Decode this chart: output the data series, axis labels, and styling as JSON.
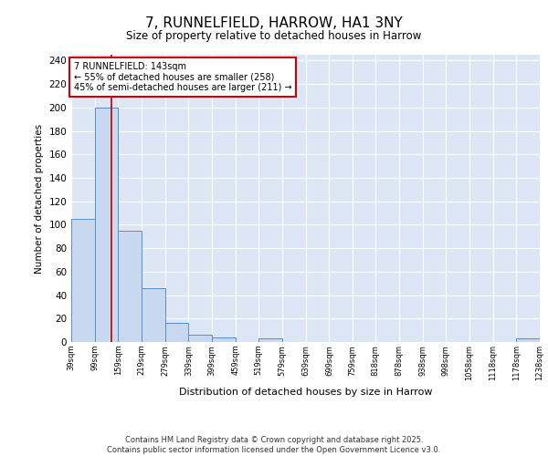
{
  "title": "7, RUNNELFIELD, HARROW, HA1 3NY",
  "subtitle": "Size of property relative to detached houses in Harrow",
  "xlabel": "Distribution of detached houses by size in Harrow",
  "ylabel": "Number of detached properties",
  "bin_edges": [
    39,
    99,
    159,
    219,
    279,
    339,
    399,
    459,
    519,
    579,
    639,
    699,
    759,
    818,
    878,
    938,
    998,
    1058,
    1118,
    1178,
    1238
  ],
  "bar_heights": [
    105,
    200,
    95,
    46,
    16,
    6,
    4,
    0,
    3,
    0,
    0,
    0,
    0,
    0,
    0,
    0,
    0,
    0,
    0,
    3
  ],
  "bar_color": "#c8d8ee",
  "bar_edge_color": "#5590c8",
  "vline_x": 143,
  "vline_color": "#bb0000",
  "annotation_text": "7 RUNNELFIELD: 143sqm\n← 55% of detached houses are smaller (258)\n45% of semi-detached houses are larger (211) →",
  "annotation_box_color": "#ffffff",
  "annotation_border_color": "#cc0000",
  "ylim": [
    0,
    245
  ],
  "yticks": [
    0,
    20,
    40,
    60,
    80,
    100,
    120,
    140,
    160,
    180,
    200,
    220,
    240
  ],
  "bg_color": "#dde6f5",
  "grid_color": "#ffffff",
  "footer": "Contains HM Land Registry data © Crown copyright and database right 2025.\nContains public sector information licensed under the Open Government Licence v3.0.",
  "tick_labels": [
    "39sqm",
    "99sqm",
    "159sqm",
    "219sqm",
    "279sqm",
    "339sqm",
    "399sqm",
    "459sqm",
    "519sqm",
    "579sqm",
    "639sqm",
    "699sqm",
    "759sqm",
    "818sqm",
    "878sqm",
    "938sqm",
    "998sqm",
    "1058sqm",
    "1118sqm",
    "1178sqm",
    "1238sqm"
  ]
}
